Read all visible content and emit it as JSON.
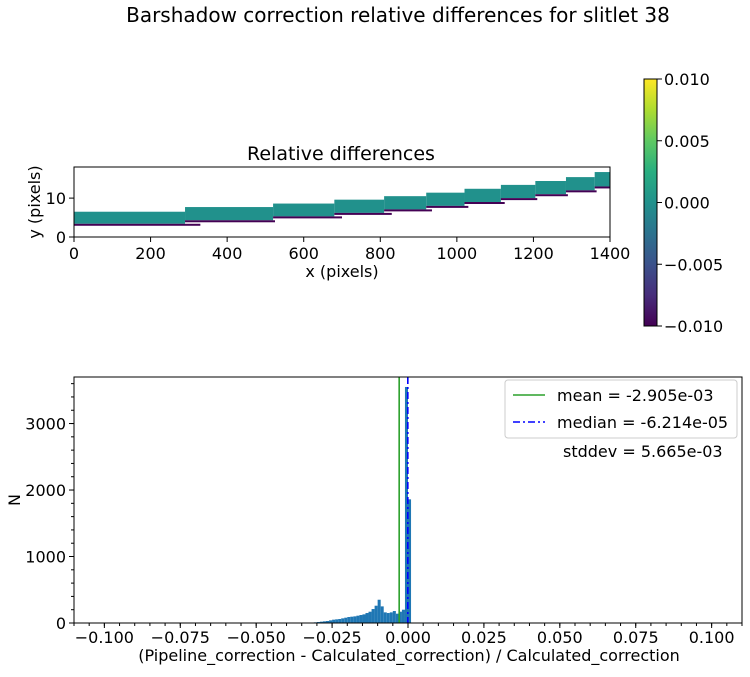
{
  "figure": {
    "title": "Barshadow correction relative differences for slitlet 38"
  },
  "chart_data": [
    {
      "type": "heatmap",
      "title": "Relative differences",
      "xlabel": "x (pixels)",
      "ylabel": "y (pixels)",
      "xlim": [
        0,
        1400
      ],
      "ylim": [
        0,
        18
      ],
      "xticks": [
        0,
        200,
        400,
        600,
        800,
        1000,
        1200,
        1400
      ],
      "yticks": [
        0,
        10
      ],
      "colormap": "viridis",
      "color_range": [
        -0.01,
        0.01
      ],
      "colorbar_ticks": [
        "0.010",
        "0.005",
        "0.000",
        "−0.005",
        "−0.010"
      ],
      "steps": [
        {
          "x0": 0,
          "x1": 290,
          "ylow": 3.4,
          "yhigh": 6.5,
          "lowx1": 330
        },
        {
          "x0": 290,
          "x1": 520,
          "ylow": 4.3,
          "yhigh": 7.7,
          "lowx1": 525
        },
        {
          "x0": 520,
          "x1": 680,
          "ylow": 5.3,
          "yhigh": 8.6,
          "lowx1": 700
        },
        {
          "x0": 680,
          "x1": 810,
          "ylow": 6.2,
          "yhigh": 9.6,
          "lowx1": 830
        },
        {
          "x0": 810,
          "x1": 920,
          "ylow": 7.1,
          "yhigh": 10.5,
          "lowx1": 935
        },
        {
          "x0": 920,
          "x1": 1020,
          "ylow": 8.0,
          "yhigh": 11.4,
          "lowx1": 1030
        },
        {
          "x0": 1020,
          "x1": 1115,
          "ylow": 9.0,
          "yhigh": 12.4,
          "lowx1": 1125
        },
        {
          "x0": 1115,
          "x1": 1205,
          "ylow": 10.0,
          "yhigh": 13.4,
          "lowx1": 1210
        },
        {
          "x0": 1205,
          "x1": 1285,
          "ylow": 11.0,
          "yhigh": 14.4,
          "lowx1": 1290
        },
        {
          "x0": 1285,
          "x1": 1360,
          "ylow": 12.0,
          "yhigh": 15.4,
          "lowx1": 1365
        },
        {
          "x0": 1360,
          "x1": 1420,
          "ylow": 13.0,
          "yhigh": 16.7,
          "lowx1": 1420
        }
      ],
      "band_value": 0.0,
      "edge_value": -0.01
    },
    {
      "type": "bar",
      "subtype": "histogram",
      "xlabel": "(Pipeline_correction - Calculated_correction) / Calculated_correction",
      "ylabel": "N",
      "xlim": [
        -0.11,
        0.11
      ],
      "ylim": [
        0,
        3700
      ],
      "xticks": [
        -0.1,
        -0.075,
        -0.05,
        -0.025,
        0.0,
        0.025,
        0.05,
        0.075,
        0.1
      ],
      "xtick_labels": [
        "−0.100",
        "−0.075",
        "−0.050",
        "−0.025",
        "0.000",
        "0.025",
        "0.050",
        "0.075",
        "0.100"
      ],
      "yticks": [
        0,
        1000,
        2000,
        3000
      ],
      "bin_width": 0.001,
      "bins": [
        {
          "x": -0.032,
          "count": 5
        },
        {
          "x": -0.031,
          "count": 10
        },
        {
          "x": -0.03,
          "count": 15
        },
        {
          "x": -0.029,
          "count": 20
        },
        {
          "x": -0.028,
          "count": 25
        },
        {
          "x": -0.027,
          "count": 30
        },
        {
          "x": -0.026,
          "count": 40
        },
        {
          "x": -0.025,
          "count": 50
        },
        {
          "x": -0.024,
          "count": 55
        },
        {
          "x": -0.023,
          "count": 60
        },
        {
          "x": -0.022,
          "count": 70
        },
        {
          "x": -0.021,
          "count": 80
        },
        {
          "x": -0.02,
          "count": 90
        },
        {
          "x": -0.019,
          "count": 95
        },
        {
          "x": -0.018,
          "count": 100
        },
        {
          "x": -0.017,
          "count": 110
        },
        {
          "x": -0.016,
          "count": 120
        },
        {
          "x": -0.015,
          "count": 130
        },
        {
          "x": -0.014,
          "count": 150
        },
        {
          "x": -0.013,
          "count": 170
        },
        {
          "x": -0.012,
          "count": 210
        },
        {
          "x": -0.011,
          "count": 260
        },
        {
          "x": -0.01,
          "count": 350
        },
        {
          "x": -0.009,
          "count": 250
        },
        {
          "x": -0.008,
          "count": 160
        },
        {
          "x": -0.007,
          "count": 150
        },
        {
          "x": -0.006,
          "count": 160
        },
        {
          "x": -0.005,
          "count": 180
        },
        {
          "x": -0.004,
          "count": 140
        },
        {
          "x": -0.003,
          "count": 170
        },
        {
          "x": -0.002,
          "count": 200
        },
        {
          "x": -0.001,
          "count": 3550
        },
        {
          "x": 0.0,
          "count": 1860
        }
      ],
      "bar_color": "#1f77b4",
      "mean": -0.002905,
      "median": -6.214e-05,
      "legend": [
        {
          "label": "mean = -2.905e-03",
          "color": "#2ca02c",
          "style": "solid"
        },
        {
          "label": "median = -6.214e-05",
          "color": "#0000ff",
          "style": "dashdot"
        }
      ],
      "legend_position": "upper-right",
      "annotation": "stddev = 5.665e-03"
    }
  ]
}
